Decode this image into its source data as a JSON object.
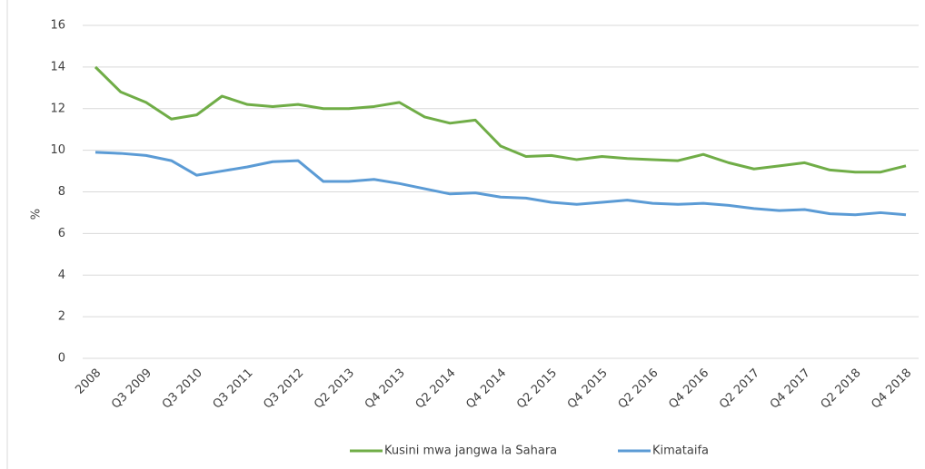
{
  "chart_data": {
    "type": "line",
    "y_label": "%",
    "categories": [
      "2008",
      null,
      "Q3 2009",
      null,
      "Q3 2010",
      null,
      "Q3 2011",
      null,
      "Q3 2012",
      null,
      "Q2 2013",
      null,
      "Q4 2013",
      null,
      "Q2 2014",
      null,
      "Q4 2014",
      null,
      "Q2 2015",
      null,
      "Q4 2015",
      null,
      "Q2 2016",
      null,
      "Q4 2016",
      null,
      "Q2 2017",
      null,
      "Q4 2017",
      null,
      "Q2 2018",
      null,
      "Q4 2018"
    ],
    "series": [
      {
        "name": "Kusini mwa jangwa la Sahara",
        "color": "#70ad47",
        "values": [
          14.0,
          12.8,
          12.3,
          11.5,
          11.7,
          12.6,
          12.2,
          12.1,
          12.2,
          12.0,
          12.0,
          12.1,
          12.3,
          11.6,
          11.3,
          11.45,
          10.2,
          9.7,
          9.75,
          9.55,
          9.7,
          9.6,
          9.55,
          9.5,
          9.8,
          9.4,
          9.1,
          9.25,
          9.4,
          9.05,
          8.95,
          8.95,
          9.25
        ]
      },
      {
        "name": "Kimataifa",
        "color": "#5b9bd5",
        "values": [
          9.9,
          9.85,
          9.75,
          9.5,
          8.8,
          9.0,
          9.2,
          9.45,
          9.5,
          8.5,
          8.5,
          8.6,
          8.4,
          8.15,
          7.9,
          7.95,
          7.75,
          7.7,
          7.5,
          7.4,
          7.5,
          7.6,
          7.45,
          7.4,
          7.45,
          7.35,
          7.2,
          7.1,
          7.15,
          6.95,
          6.9,
          7.0,
          6.9
        ]
      }
    ],
    "ylim": [
      0,
      16
    ],
    "yticks": [
      0,
      2,
      4,
      6,
      8,
      10,
      12,
      14,
      16
    ],
    "grid": true
  }
}
